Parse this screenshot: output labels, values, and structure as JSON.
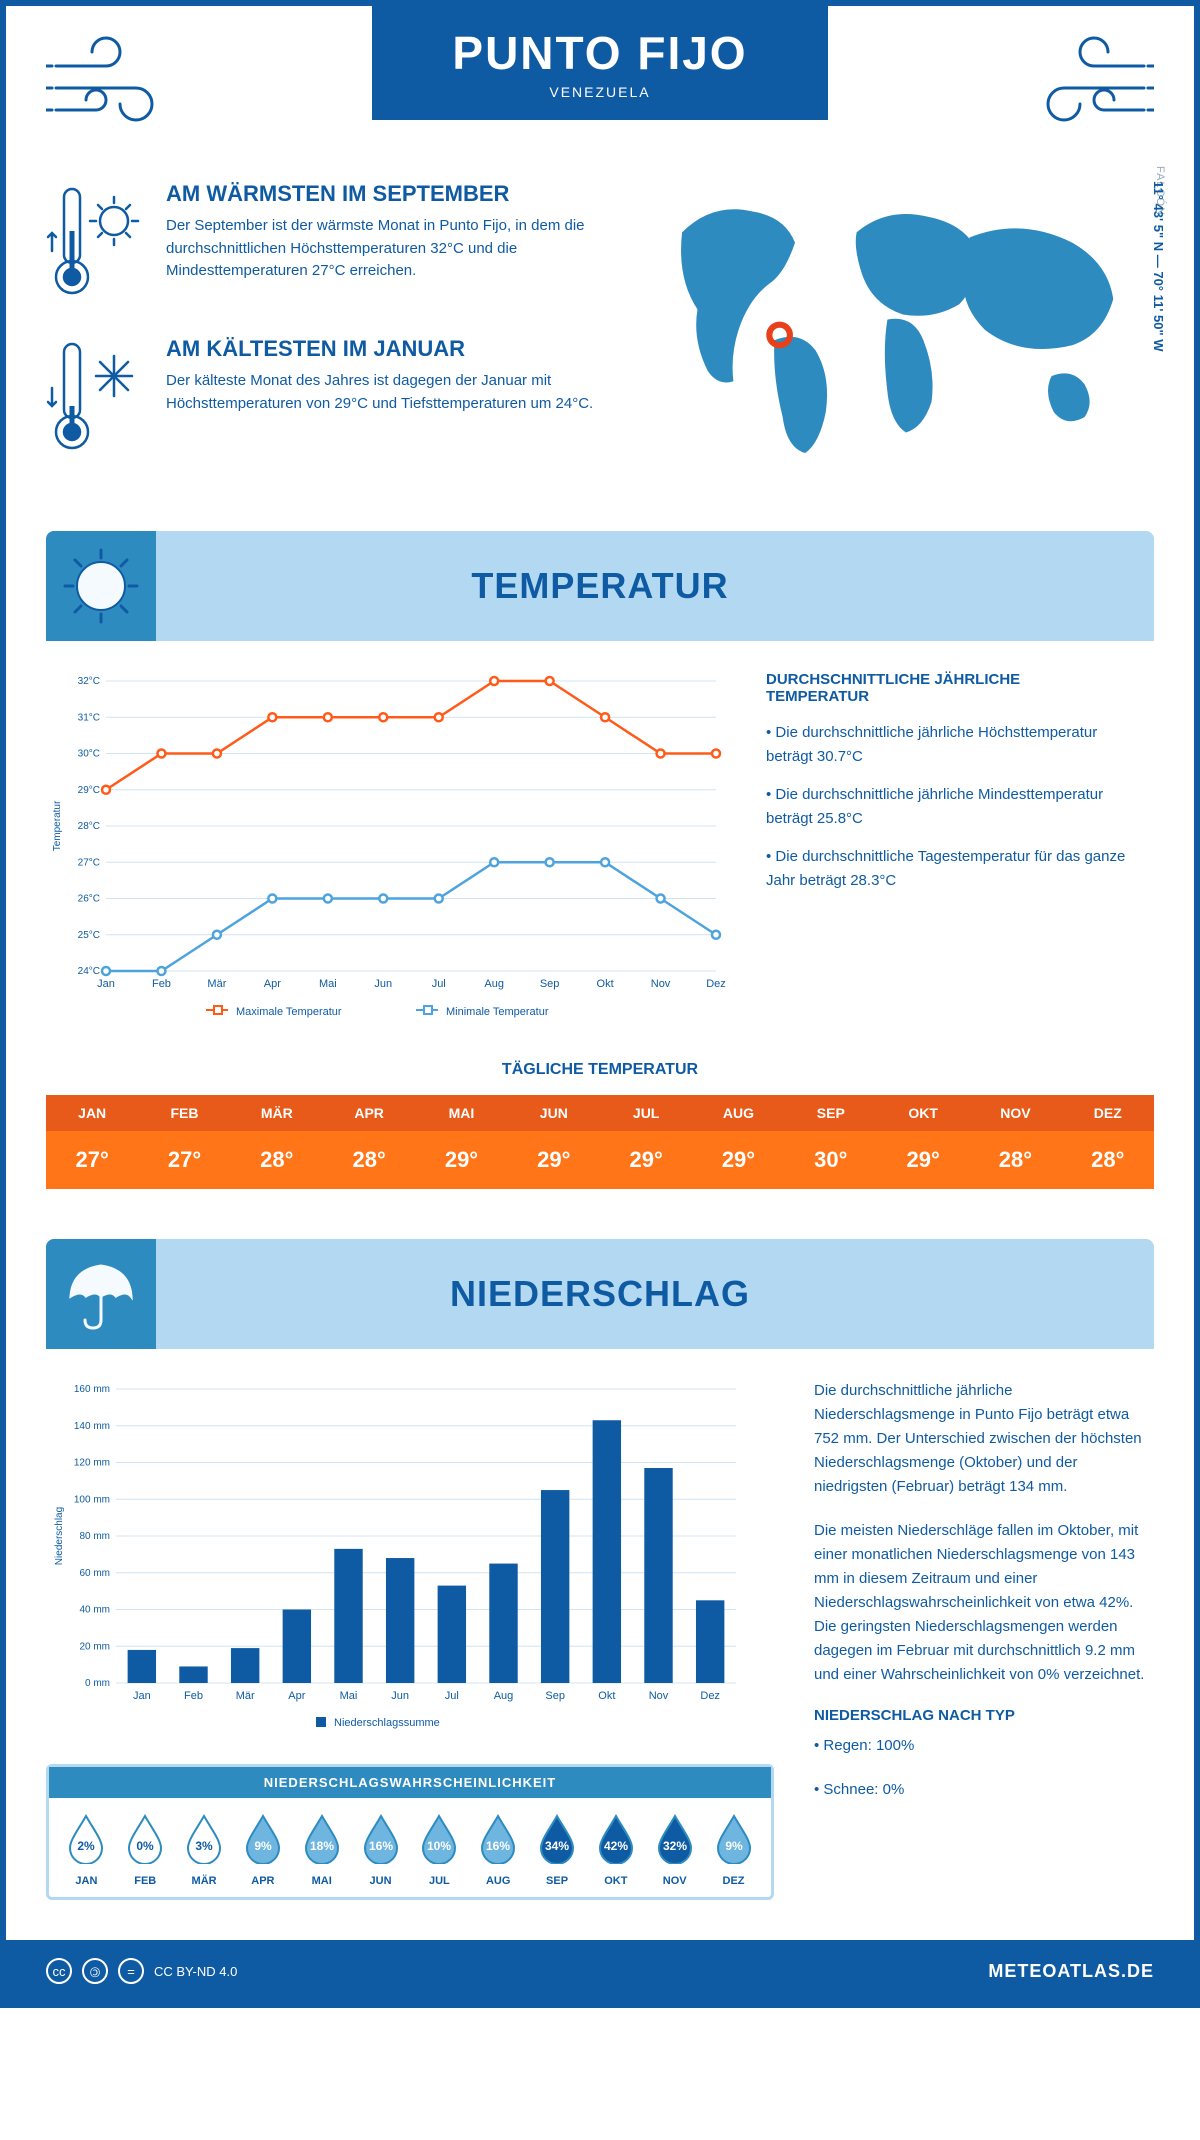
{
  "header": {
    "city": "PUNTO FIJO",
    "country": "VENEZUELA",
    "region": "FALCÓN",
    "coords": "11° 43' 5\" N — 70° 11' 50\" W"
  },
  "colors": {
    "primary": "#0f5ba3",
    "accent_blue": "#2e8bc0",
    "light_blue": "#b3d9f2",
    "orange_dark": "#e85a1a",
    "orange": "#ff7518",
    "line_max": "#ff5a1a",
    "line_min": "#4da3dd",
    "bar": "#0f5ba3"
  },
  "warmest": {
    "title": "AM WÄRMSTEN IM SEPTEMBER",
    "text": "Der September ist der wärmste Monat in Punto Fijo, in dem die durchschnittlichen Höchsttemperaturen 32°C und die Mindesttemperaturen 27°C erreichen."
  },
  "coldest": {
    "title": "AM KÄLTESTEN IM JANUAR",
    "text": "Der kälteste Monat des Jahres ist dagegen der Januar mit Höchsttemperaturen von 29°C und Tiefsttemperaturen um 24°C."
  },
  "sections": {
    "temperature": "TEMPERATUR",
    "precipitation": "NIEDERSCHLAG"
  },
  "temp_chart": {
    "months": [
      "Jan",
      "Feb",
      "Mär",
      "Apr",
      "Mai",
      "Jun",
      "Jul",
      "Aug",
      "Sep",
      "Okt",
      "Nov",
      "Dez"
    ],
    "max_values": [
      29,
      30,
      30,
      31,
      31,
      31,
      31,
      32,
      32,
      31,
      30,
      30
    ],
    "min_values": [
      24,
      24,
      25,
      26,
      26,
      26,
      26,
      27,
      27,
      27,
      26,
      25
    ],
    "ylabel": "Temperatur",
    "ylim": [
      24,
      32
    ],
    "yticks": [
      "24°C",
      "25°C",
      "26°C",
      "27°C",
      "28°C",
      "29°C",
      "30°C",
      "31°C",
      "32°C"
    ],
    "legend_max": "Maximale Temperatur",
    "legend_min": "Minimale Temperatur"
  },
  "avg_temp": {
    "title": "DURCHSCHNITTLICHE JÄHRLICHE TEMPERATUR",
    "p1": "• Die durchschnittliche jährliche Höchsttemperatur beträgt 30.7°C",
    "p2": "• Die durchschnittliche jährliche Mindesttemperatur beträgt 25.8°C",
    "p3": "• Die durchschnittliche Tagestemperatur für das ganze Jahr beträgt 28.3°C"
  },
  "daily": {
    "title": "TÄGLICHE TEMPERATUR",
    "months": [
      "JAN",
      "FEB",
      "MÄR",
      "APR",
      "MAI",
      "JUN",
      "JUL",
      "AUG",
      "SEP",
      "OKT",
      "NOV",
      "DEZ"
    ],
    "values": [
      "27°",
      "27°",
      "28°",
      "28°",
      "29°",
      "29°",
      "29°",
      "29°",
      "30°",
      "29°",
      "28°",
      "28°"
    ]
  },
  "precip_chart": {
    "months": [
      "Jan",
      "Feb",
      "Mär",
      "Apr",
      "Mai",
      "Jun",
      "Jul",
      "Aug",
      "Sep",
      "Okt",
      "Nov",
      "Dez"
    ],
    "values": [
      18,
      9,
      19,
      40,
      73,
      68,
      53,
      65,
      105,
      143,
      117,
      45
    ],
    "ylabel": "Niederschlag",
    "ylim": [
      0,
      160
    ],
    "ytick_step": 20,
    "yticks": [
      "0 mm",
      "20 mm",
      "40 mm",
      "60 mm",
      "80 mm",
      "100 mm",
      "120 mm",
      "140 mm",
      "160 mm"
    ],
    "legend": "Niederschlagssumme"
  },
  "precip_text": {
    "p1": "Die durchschnittliche jährliche Niederschlagsmenge in Punto Fijo beträgt etwa 752 mm. Der Unterschied zwischen der höchsten Niederschlagsmenge (Oktober) und der niedrigsten (Februar) beträgt 134 mm.",
    "p2": "Die meisten Niederschläge fallen im Oktober, mit einer monatlichen Niederschlagsmenge von 143 mm in diesem Zeitraum und einer Niederschlagswahrscheinlichkeit von etwa 42%. Die geringsten Niederschlagsmengen werden dagegen im Februar mit durchschnittlich 9.2 mm und einer Wahrscheinlichkeit von 0% verzeichnet.",
    "type_title": "NIEDERSCHLAG NACH TYP",
    "type1": "• Regen: 100%",
    "type2": "• Schnee: 0%"
  },
  "precip_prob": {
    "title": "NIEDERSCHLAGSWAHRSCHEINLICHKEIT",
    "months": [
      "JAN",
      "FEB",
      "MÄR",
      "APR",
      "MAI",
      "JUN",
      "JUL",
      "AUG",
      "SEP",
      "OKT",
      "NOV",
      "DEZ"
    ],
    "values": [
      2,
      0,
      3,
      9,
      18,
      16,
      10,
      16,
      34,
      42,
      32,
      9
    ],
    "levels": [
      "outline",
      "outline",
      "outline",
      "light",
      "light",
      "light",
      "light",
      "light",
      "dark",
      "dark",
      "dark",
      "light"
    ],
    "color_outline": "#ffffff",
    "color_light": "#6eb5e0",
    "color_dark": "#0f5ba3",
    "stroke": "#2e8bc0"
  },
  "footer": {
    "license": "CC BY-ND 4.0",
    "brand": "METEOATLAS.DE"
  }
}
